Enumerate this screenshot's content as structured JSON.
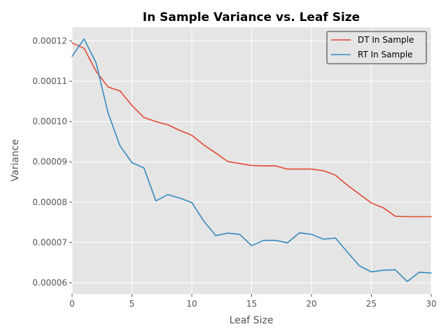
{
  "chart_data": {
    "type": "line",
    "title": "In Sample Variance vs. Leaf Size",
    "xlabel": "Leaf Size",
    "ylabel": "Variance",
    "xlim": [
      0,
      30
    ],
    "ylim": [
      5.72e-05,
      0.0001234
    ],
    "xticks": [
      0,
      5,
      10,
      15,
      20,
      25,
      30
    ],
    "xtick_labels": [
      "0",
      "5",
      "10",
      "15",
      "20",
      "25",
      "30"
    ],
    "yticks": [
      6e-05,
      7e-05,
      8e-05,
      9e-05,
      0.0001,
      0.00011,
      0.00012
    ],
    "ytick_labels": [
      "0.00006",
      "0.00007",
      "0.00008",
      "0.00009",
      "0.00010",
      "0.00011",
      "0.00012"
    ],
    "grid": true,
    "legend_position": "top-right",
    "background_color": "#e5e5e5",
    "x": [
      0,
      1,
      2,
      3,
      4,
      5,
      6,
      7,
      8,
      9,
      10,
      11,
      12,
      13,
      14,
      15,
      16,
      17,
      18,
      19,
      20,
      21,
      22,
      23,
      24,
      25,
      26,
      27,
      28,
      29,
      30
    ],
    "series": [
      {
        "name": "DT In Sample",
        "color": "#e24a33",
        "values": [
          0.0001195,
          0.0001182,
          0.0001125,
          0.0001086,
          0.0001076,
          0.000104,
          0.000101,
          0.0001,
          9.92e-05,
          9.78e-05,
          9.66e-05,
          9.42e-05,
          9.22e-05,
          9.01e-05,
          8.96e-05,
          8.91e-05,
          8.9e-05,
          8.9e-05,
          8.82e-05,
          8.82e-05,
          8.82e-05,
          8.78e-05,
          8.67e-05,
          8.42e-05,
          8.2e-05,
          7.98e-05,
          7.86e-05,
          7.65e-05,
          7.64e-05,
          7.64e-05,
          7.64e-05
        ]
      },
      {
        "name": "RT In Sample",
        "color": "#348abd",
        "values": [
          0.0001162,
          0.0001205,
          0.0001146,
          0.0001022,
          9.4e-05,
          8.98e-05,
          8.85e-05,
          8.03e-05,
          8.19e-05,
          8.1e-05,
          7.99e-05,
          7.53e-05,
          7.17e-05,
          7.23e-05,
          7.2e-05,
          6.92e-05,
          7.05e-05,
          7.05e-05,
          6.99e-05,
          7.24e-05,
          7.2e-05,
          7.08e-05,
          7.11e-05,
          6.76e-05,
          6.42e-05,
          6.27e-05,
          6.31e-05,
          6.32e-05,
          6.03e-05,
          6.26e-05,
          6.24e-05
        ]
      }
    ]
  }
}
